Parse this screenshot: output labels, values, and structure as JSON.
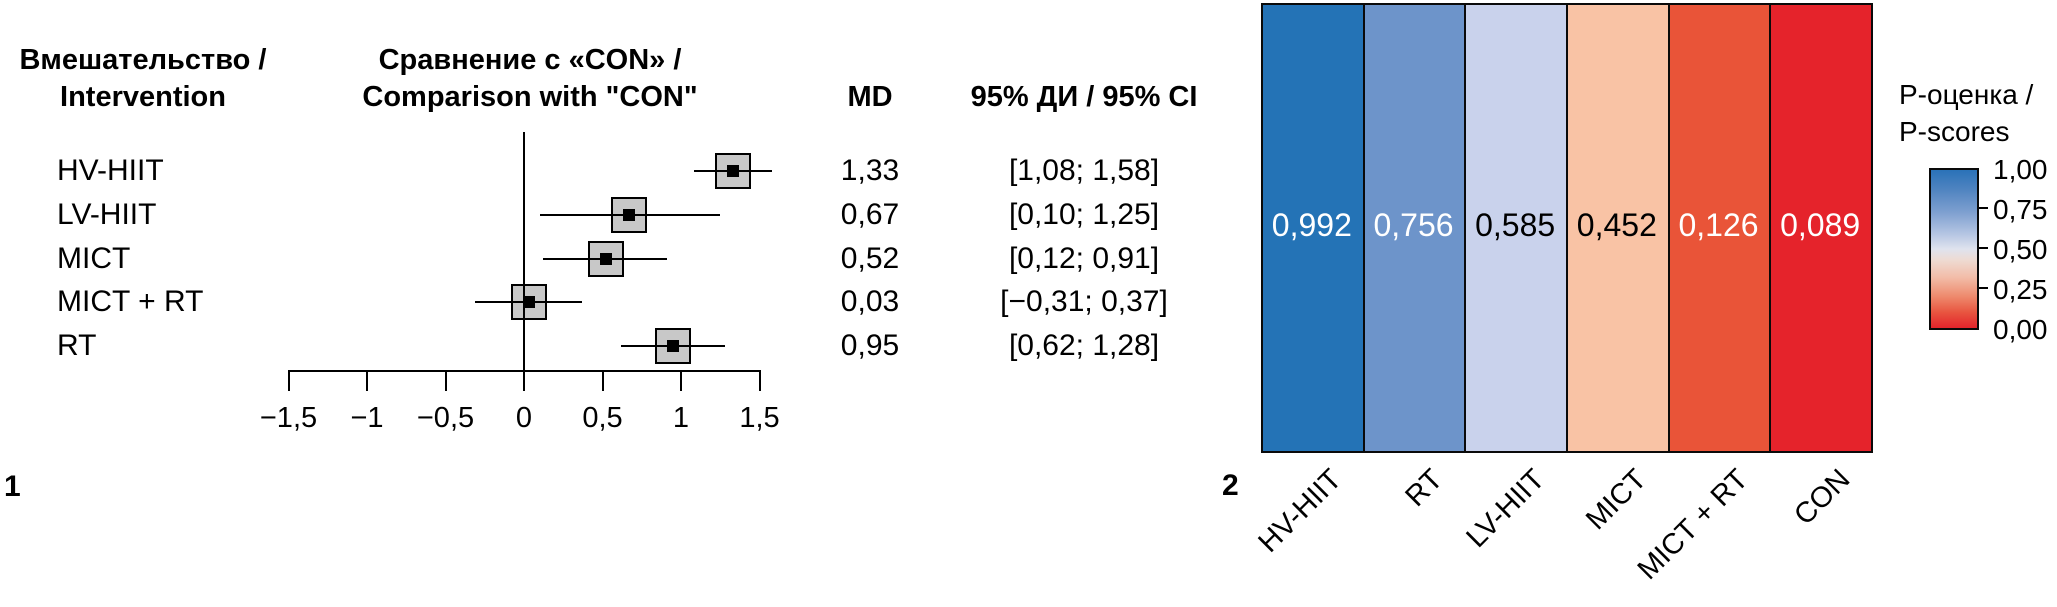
{
  "figure": {
    "panel1_label": "1",
    "panel2_label": "2",
    "background": "#ffffff"
  },
  "chart_data": [
    {
      "type": "forest",
      "header_intervention_l1": "Вмешательство /",
      "header_intervention_l2": "Intervention",
      "header_comparison_l1": "Сравнение с «CON» /",
      "header_comparison_l2": "Comparison with \"CON\"",
      "md_header": "MD",
      "ci_header": "95% ДИ / 95% CI",
      "xlim": [
        -1.5,
        1.5
      ],
      "zero_line": 0,
      "x_ticks": [
        {
          "v": -1.5,
          "label": "−1,5"
        },
        {
          "v": -1.0,
          "label": "−1"
        },
        {
          "v": -0.5,
          "label": "−0,5"
        },
        {
          "v": 0.0,
          "label": "0"
        },
        {
          "v": 0.5,
          "label": "0,5"
        },
        {
          "v": 1.0,
          "label": "1"
        },
        {
          "v": 1.5,
          "label": "1,5"
        }
      ],
      "rows": [
        {
          "label": "HV-HIIT",
          "md": 1.33,
          "md_text": "1,33",
          "ci": [
            1.08,
            1.58
          ],
          "ci_text": "[1,08; 1,58]"
        },
        {
          "label": "LV-HIIT",
          "md": 0.67,
          "md_text": "0,67",
          "ci": [
            0.1,
            1.25
          ],
          "ci_text": "[0,10; 1,25]"
        },
        {
          "label": "MICT",
          "md": 0.52,
          "md_text": "0,52",
          "ci": [
            0.12,
            0.91
          ],
          "ci_text": "[0,12; 0,91]"
        },
        {
          "label": "MICT + RT",
          "md": 0.03,
          "md_text": "0,03",
          "ci": [
            -0.31,
            0.37
          ],
          "ci_text": "[−0,31; 0,37]"
        },
        {
          "label": "RT",
          "md": 0.95,
          "md_text": "0,95",
          "ci": [
            0.62,
            1.28
          ],
          "ci_text": "[0,62; 1,28]"
        }
      ],
      "marker_fill": "#c8c8c8",
      "line_color": "#000000"
    },
    {
      "type": "heatmap",
      "legend_title_l1": "P-оценка /",
      "legend_title_l2": "P-scores",
      "columns": [
        {
          "label": "HV-HIIT",
          "value": 0.992,
          "value_text": "0,992",
          "color": "#2473b6",
          "text_color": "#ffffff"
        },
        {
          "label": "RT",
          "value": 0.756,
          "value_text": "0,756",
          "color": "#6d94ca",
          "text_color": "#ffffff"
        },
        {
          "label": "LV-HIIT",
          "value": 0.585,
          "value_text": "0,585",
          "color": "#c9d2ec",
          "text_color": "#000000"
        },
        {
          "label": "MICT",
          "value": 0.452,
          "value_text": "0,452",
          "color": "#f9c3a5",
          "text_color": "#000000"
        },
        {
          "label": "MICT + RT",
          "value": 0.126,
          "value_text": "0,126",
          "color": "#e95438",
          "text_color": "#ffffff"
        },
        {
          "label": "CON",
          "value": 0.089,
          "value_text": "0,089",
          "color": "#e5232b",
          "text_color": "#ffffff"
        }
      ],
      "legend_ticks": [
        {
          "v": 1.0,
          "label": "1,00"
        },
        {
          "v": 0.75,
          "label": "0,75"
        },
        {
          "v": 0.5,
          "label": "0,50"
        },
        {
          "v": 0.25,
          "label": "0,25"
        },
        {
          "v": 0.0,
          "label": "0,00"
        }
      ],
      "colorbar_range": [
        0,
        1
      ],
      "colorbar_top_color": "#2a72b8",
      "colorbar_bottom_color": "#e3242b"
    }
  ]
}
